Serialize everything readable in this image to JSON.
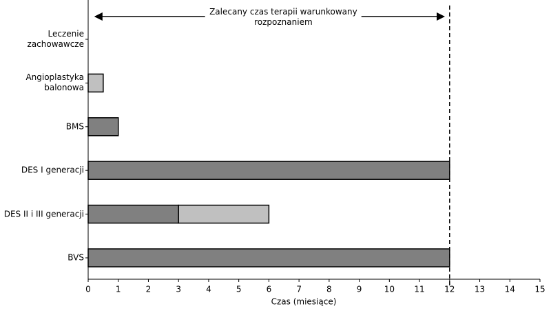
{
  "chart_data": {
    "type": "bar",
    "orientation": "horizontal",
    "stacked": true,
    "categories": [
      "Leczenie\nzachowawcze",
      "Angioplastyka\nbalonowa",
      "BMS",
      "DES I generacji",
      "DES II i III generacji",
      "BVS"
    ],
    "series": [
      {
        "color": "#808080",
        "values": [
          null,
          null,
          1,
          12,
          3,
          12
        ]
      },
      {
        "color": "#c0c0c0",
        "values": [
          null,
          0.5,
          null,
          null,
          3,
          null
        ]
      }
    ],
    "xlabel": "Czas (miesiące)",
    "xlim": [
      0,
      15
    ],
    "xticks": [
      0,
      1,
      2,
      3,
      4,
      5,
      6,
      7,
      8,
      9,
      10,
      11,
      12,
      13,
      14,
      15
    ],
    "reference_line": 12,
    "annotation": "Zalecany czas terapii warunkowany\nrozpoznaniem"
  }
}
